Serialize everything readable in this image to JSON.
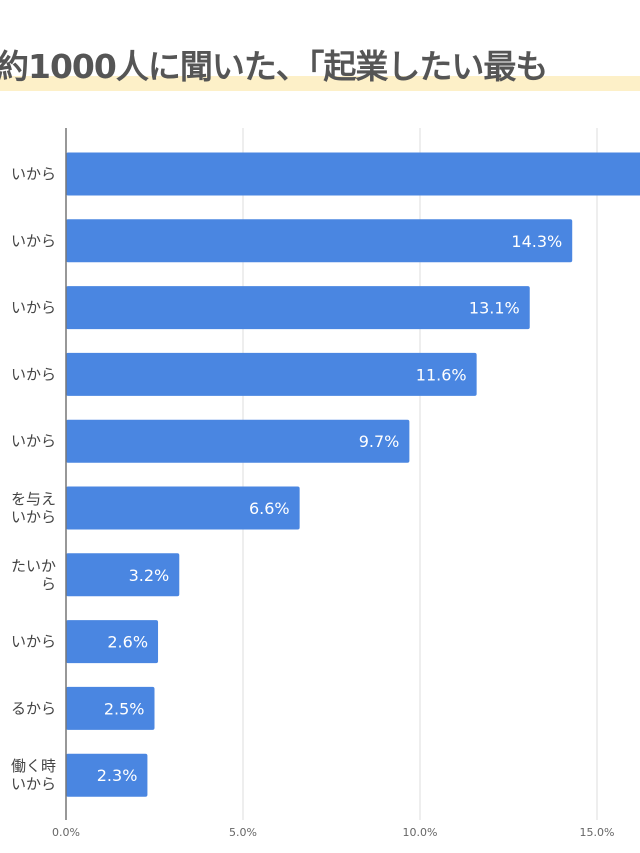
{
  "chart_data": {
    "type": "bar",
    "orientation": "horizontal",
    "title": "約1000人に聞いた、「起業したい最も",
    "categories": [
      "いから",
      "いから",
      "いから",
      "いから",
      "いから",
      "を与え\nいから",
      "たいか\nら",
      "いから",
      "るから",
      "働く時\nいから"
    ],
    "values": [
      null,
      14.3,
      13.1,
      11.6,
      9.7,
      6.6,
      3.2,
      2.6,
      2.5,
      2.3
    ],
    "labels": [
      "",
      "14.3%",
      "13.1%",
      "11.6%",
      "9.7%",
      "6.6%",
      "3.2%",
      "2.6%",
      "2.5%",
      "2.3%"
    ],
    "xticks": [
      "0.0%",
      "5.0%",
      "10.0%",
      "15.0%"
    ],
    "xtick_values": [
      0,
      5,
      10,
      15
    ],
    "xlim": [
      0,
      16.2
    ],
    "grid": true,
    "bar_color": "#4a86e1",
    "highlight_color": "#fdf0c8"
  }
}
